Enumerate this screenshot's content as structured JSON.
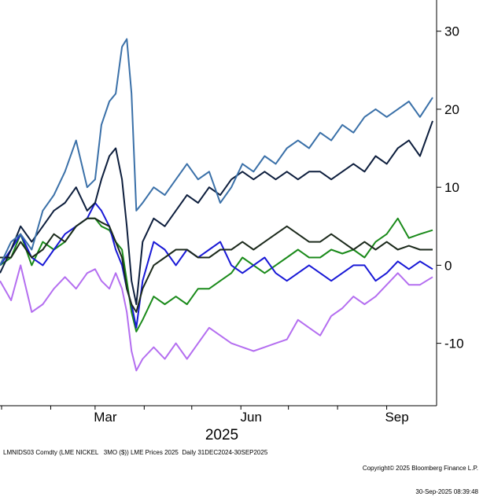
{
  "chart_data": {
    "type": "line",
    "title": "",
    "xlabel": "2025",
    "ylabel": "",
    "x_start": "2024-12-31",
    "x_end": "2025-09-30",
    "x_ticks": [
      {
        "label": "Mar",
        "date": "2025-03-01"
      },
      {
        "label": "Jun",
        "date": "2025-06-01"
      },
      {
        "label": "Sep",
        "date": "2025-09-01"
      }
    ],
    "ylim": [
      -18,
      34
    ],
    "y_ticks": [
      -10,
      0,
      10,
      20,
      30
    ],
    "y_axis_side": "right",
    "grid": false,
    "legend": "none",
    "series": [
      {
        "color": "#b46ef0",
        "points": [
          [
            "2024-12-31",
            -2
          ],
          [
            "2025-01-07",
            -4.5
          ],
          [
            "2025-01-13",
            0
          ],
          [
            "2025-01-20",
            -6
          ],
          [
            "2025-01-27",
            -5
          ],
          [
            "2025-02-03",
            -3
          ],
          [
            "2025-02-10",
            -1.5
          ],
          [
            "2025-02-17",
            -3
          ],
          [
            "2025-02-24",
            -1
          ],
          [
            "2025-03-01",
            -0.5
          ],
          [
            "2025-03-05",
            -2
          ],
          [
            "2025-03-10",
            -3
          ],
          [
            "2025-03-14",
            -1
          ],
          [
            "2025-03-18",
            -3
          ],
          [
            "2025-03-21",
            -6
          ],
          [
            "2025-03-24",
            -11
          ],
          [
            "2025-03-27",
            -13.5
          ],
          [
            "2025-03-31",
            -12
          ],
          [
            "2025-04-07",
            -10.5
          ],
          [
            "2025-04-14",
            -12
          ],
          [
            "2025-04-21",
            -10
          ],
          [
            "2025-04-28",
            -12
          ],
          [
            "2025-05-05",
            -10
          ],
          [
            "2025-05-12",
            -8
          ],
          [
            "2025-05-19",
            -9
          ],
          [
            "2025-05-26",
            -10
          ],
          [
            "2025-06-02",
            -10.5
          ],
          [
            "2025-06-09",
            -11
          ],
          [
            "2025-06-16",
            -10.5
          ],
          [
            "2025-06-23",
            -10
          ],
          [
            "2025-06-30",
            -9.5
          ],
          [
            "2025-07-07",
            -7
          ],
          [
            "2025-07-14",
            -8
          ],
          [
            "2025-07-21",
            -9
          ],
          [
            "2025-07-28",
            -6.5
          ],
          [
            "2025-08-04",
            -5.5
          ],
          [
            "2025-08-11",
            -4
          ],
          [
            "2025-08-18",
            -5
          ],
          [
            "2025-08-25",
            -4
          ],
          [
            "2025-09-01",
            -2.5
          ],
          [
            "2025-09-08",
            -1
          ],
          [
            "2025-09-15",
            -2.5
          ],
          [
            "2025-09-22",
            -2.5
          ],
          [
            "2025-09-30",
            -1.5
          ]
        ]
      },
      {
        "color": "#1a8a1a",
        "points": [
          [
            "2024-12-31",
            0
          ],
          [
            "2025-01-07",
            1
          ],
          [
            "2025-01-13",
            4
          ],
          [
            "2025-01-20",
            0
          ],
          [
            "2025-01-27",
            3
          ],
          [
            "2025-02-03",
            2
          ],
          [
            "2025-02-10",
            3
          ],
          [
            "2025-02-17",
            5
          ],
          [
            "2025-02-24",
            6
          ],
          [
            "2025-03-01",
            6
          ],
          [
            "2025-03-05",
            5
          ],
          [
            "2025-03-10",
            4.5
          ],
          [
            "2025-03-14",
            3
          ],
          [
            "2025-03-18",
            2
          ],
          [
            "2025-03-21",
            -2
          ],
          [
            "2025-03-24",
            -6
          ],
          [
            "2025-03-27",
            -8.5
          ],
          [
            "2025-03-31",
            -7
          ],
          [
            "2025-04-07",
            -4
          ],
          [
            "2025-04-14",
            -5
          ],
          [
            "2025-04-21",
            -4
          ],
          [
            "2025-04-28",
            -5
          ],
          [
            "2025-05-05",
            -3
          ],
          [
            "2025-05-12",
            -3
          ],
          [
            "2025-05-19",
            -2
          ],
          [
            "2025-05-26",
            -1
          ],
          [
            "2025-06-02",
            1
          ],
          [
            "2025-06-09",
            0
          ],
          [
            "2025-06-16",
            -1
          ],
          [
            "2025-06-23",
            0
          ],
          [
            "2025-06-30",
            1
          ],
          [
            "2025-07-07",
            2
          ],
          [
            "2025-07-14",
            1
          ],
          [
            "2025-07-21",
            1
          ],
          [
            "2025-07-28",
            2
          ],
          [
            "2025-08-04",
            1.5
          ],
          [
            "2025-08-11",
            2
          ],
          [
            "2025-08-18",
            1
          ],
          [
            "2025-08-25",
            3
          ],
          [
            "2025-09-01",
            4
          ],
          [
            "2025-09-08",
            6
          ],
          [
            "2025-09-15",
            3.5
          ],
          [
            "2025-09-22",
            4
          ],
          [
            "2025-09-30",
            4.5
          ]
        ]
      },
      {
        "color": "#1818d6",
        "points": [
          [
            "2024-12-31",
            0
          ],
          [
            "2025-01-07",
            2
          ],
          [
            "2025-01-13",
            4
          ],
          [
            "2025-01-20",
            1
          ],
          [
            "2025-01-27",
            0
          ],
          [
            "2025-02-03",
            2
          ],
          [
            "2025-02-10",
            4
          ],
          [
            "2025-02-17",
            5
          ],
          [
            "2025-02-24",
            6
          ],
          [
            "2025-03-01",
            8
          ],
          [
            "2025-03-05",
            7
          ],
          [
            "2025-03-10",
            5
          ],
          [
            "2025-03-14",
            2
          ],
          [
            "2025-03-18",
            0
          ],
          [
            "2025-03-21",
            -3
          ],
          [
            "2025-03-24",
            -5
          ],
          [
            "2025-03-27",
            -8
          ],
          [
            "2025-03-31",
            -2
          ],
          [
            "2025-04-07",
            3
          ],
          [
            "2025-04-14",
            2
          ],
          [
            "2025-04-21",
            0
          ],
          [
            "2025-04-28",
            2
          ],
          [
            "2025-05-05",
            1
          ],
          [
            "2025-05-12",
            2
          ],
          [
            "2025-05-19",
            3
          ],
          [
            "2025-05-26",
            0
          ],
          [
            "2025-06-02",
            -1
          ],
          [
            "2025-06-09",
            0
          ],
          [
            "2025-06-16",
            1
          ],
          [
            "2025-06-23",
            -1
          ],
          [
            "2025-06-30",
            -2
          ],
          [
            "2025-07-07",
            -1
          ],
          [
            "2025-07-14",
            0
          ],
          [
            "2025-07-21",
            -1
          ],
          [
            "2025-07-28",
            -2
          ],
          [
            "2025-08-04",
            -1
          ],
          [
            "2025-08-11",
            0
          ],
          [
            "2025-08-18",
            0
          ],
          [
            "2025-08-25",
            -2
          ],
          [
            "2025-09-01",
            -1
          ],
          [
            "2025-09-08",
            0.5
          ],
          [
            "2025-09-15",
            -0.5
          ],
          [
            "2025-09-22",
            0.5
          ],
          [
            "2025-09-30",
            -0.5
          ]
        ]
      },
      {
        "color": "#1c2a1c",
        "points": [
          [
            "2024-12-31",
            1
          ],
          [
            "2025-01-07",
            1
          ],
          [
            "2025-01-13",
            3
          ],
          [
            "2025-01-20",
            1
          ],
          [
            "2025-01-27",
            2
          ],
          [
            "2025-02-03",
            4
          ],
          [
            "2025-02-10",
            3
          ],
          [
            "2025-02-17",
            5
          ],
          [
            "2025-02-24",
            6
          ],
          [
            "2025-03-01",
            6
          ],
          [
            "2025-03-05",
            5.5
          ],
          [
            "2025-03-10",
            5
          ],
          [
            "2025-03-14",
            3
          ],
          [
            "2025-03-18",
            1
          ],
          [
            "2025-03-21",
            -3
          ],
          [
            "2025-03-24",
            -5
          ],
          [
            "2025-03-27",
            -6
          ],
          [
            "2025-03-31",
            -3
          ],
          [
            "2025-04-07",
            0
          ],
          [
            "2025-04-14",
            1
          ],
          [
            "2025-04-21",
            2
          ],
          [
            "2025-04-28",
            2
          ],
          [
            "2025-05-05",
            1
          ],
          [
            "2025-05-12",
            1
          ],
          [
            "2025-05-19",
            2
          ],
          [
            "2025-05-26",
            2
          ],
          [
            "2025-06-02",
            3
          ],
          [
            "2025-06-09",
            2
          ],
          [
            "2025-06-16",
            3
          ],
          [
            "2025-06-23",
            4
          ],
          [
            "2025-06-30",
            5
          ],
          [
            "2025-07-07",
            4
          ],
          [
            "2025-07-14",
            3
          ],
          [
            "2025-07-21",
            3
          ],
          [
            "2025-07-28",
            4
          ],
          [
            "2025-08-04",
            3
          ],
          [
            "2025-08-11",
            2
          ],
          [
            "2025-08-18",
            3
          ],
          [
            "2025-08-25",
            2
          ],
          [
            "2025-09-01",
            3
          ],
          [
            "2025-09-08",
            2
          ],
          [
            "2025-09-15",
            2.5
          ],
          [
            "2025-09-22",
            2
          ],
          [
            "2025-09-30",
            2
          ]
        ]
      },
      {
        "color": "#0d1e3d",
        "points": [
          [
            "2024-12-31",
            -1
          ],
          [
            "2025-01-07",
            2
          ],
          [
            "2025-01-13",
            5
          ],
          [
            "2025-01-20",
            3
          ],
          [
            "2025-01-27",
            5
          ],
          [
            "2025-02-03",
            7
          ],
          [
            "2025-02-10",
            8
          ],
          [
            "2025-02-17",
            10
          ],
          [
            "2025-02-24",
            7
          ],
          [
            "2025-03-01",
            8
          ],
          [
            "2025-03-05",
            11
          ],
          [
            "2025-03-10",
            14
          ],
          [
            "2025-03-14",
            15
          ],
          [
            "2025-03-18",
            11
          ],
          [
            "2025-03-21",
            5
          ],
          [
            "2025-03-24",
            -2
          ],
          [
            "2025-03-27",
            -5
          ],
          [
            "2025-03-31",
            3
          ],
          [
            "2025-04-07",
            6
          ],
          [
            "2025-04-14",
            5
          ],
          [
            "2025-04-21",
            7
          ],
          [
            "2025-04-28",
            9
          ],
          [
            "2025-05-05",
            8
          ],
          [
            "2025-05-12",
            10
          ],
          [
            "2025-05-19",
            9
          ],
          [
            "2025-05-26",
            11
          ],
          [
            "2025-06-02",
            12
          ],
          [
            "2025-06-09",
            11
          ],
          [
            "2025-06-16",
            12
          ],
          [
            "2025-06-23",
            11
          ],
          [
            "2025-06-30",
            12
          ],
          [
            "2025-07-07",
            11
          ],
          [
            "2025-07-14",
            12
          ],
          [
            "2025-07-21",
            12
          ],
          [
            "2025-07-28",
            11
          ],
          [
            "2025-08-04",
            12
          ],
          [
            "2025-08-11",
            13
          ],
          [
            "2025-08-18",
            12
          ],
          [
            "2025-08-25",
            14
          ],
          [
            "2025-09-01",
            13
          ],
          [
            "2025-09-08",
            15
          ],
          [
            "2025-09-15",
            16
          ],
          [
            "2025-09-22",
            14
          ],
          [
            "2025-09-30",
            18.5
          ]
        ]
      },
      {
        "color": "#3a70a8",
        "points": [
          [
            "2024-12-31",
            0
          ],
          [
            "2025-01-07",
            3
          ],
          [
            "2025-01-13",
            4
          ],
          [
            "2025-01-20",
            2
          ],
          [
            "2025-01-27",
            7
          ],
          [
            "2025-02-03",
            9
          ],
          [
            "2025-02-10",
            12
          ],
          [
            "2025-02-17",
            16
          ],
          [
            "2025-02-24",
            10
          ],
          [
            "2025-03-01",
            11
          ],
          [
            "2025-03-05",
            18
          ],
          [
            "2025-03-10",
            21
          ],
          [
            "2025-03-14",
            22
          ],
          [
            "2025-03-18",
            28
          ],
          [
            "2025-03-21",
            29
          ],
          [
            "2025-03-24",
            22
          ],
          [
            "2025-03-27",
            7
          ],
          [
            "2025-03-31",
            8
          ],
          [
            "2025-04-07",
            10
          ],
          [
            "2025-04-14",
            9
          ],
          [
            "2025-04-21",
            11
          ],
          [
            "2025-04-28",
            13
          ],
          [
            "2025-05-05",
            11
          ],
          [
            "2025-05-12",
            12
          ],
          [
            "2025-05-19",
            8
          ],
          [
            "2025-05-26",
            10
          ],
          [
            "2025-06-02",
            13
          ],
          [
            "2025-06-09",
            12
          ],
          [
            "2025-06-16",
            14
          ],
          [
            "2025-06-23",
            13
          ],
          [
            "2025-06-30",
            15
          ],
          [
            "2025-07-07",
            16
          ],
          [
            "2025-07-14",
            15
          ],
          [
            "2025-07-21",
            17
          ],
          [
            "2025-07-28",
            16
          ],
          [
            "2025-08-04",
            18
          ],
          [
            "2025-08-11",
            17
          ],
          [
            "2025-08-18",
            19
          ],
          [
            "2025-08-25",
            20
          ],
          [
            "2025-09-01",
            19
          ],
          [
            "2025-09-08",
            20
          ],
          [
            "2025-09-15",
            21
          ],
          [
            "2025-09-22",
            19
          ],
          [
            "2025-09-30",
            21.5
          ]
        ]
      }
    ]
  },
  "footer": {
    "left": "LMNIDS03 Comdty (LME NICKEL   3MO ($)) LME Prices 2025  Daily 31DEC2024-30SEP2025",
    "right_line1": "Copyright© 2025 Bloomberg Finance L.P.",
    "right_line2": "30-Sep-2025 08:39:48"
  }
}
